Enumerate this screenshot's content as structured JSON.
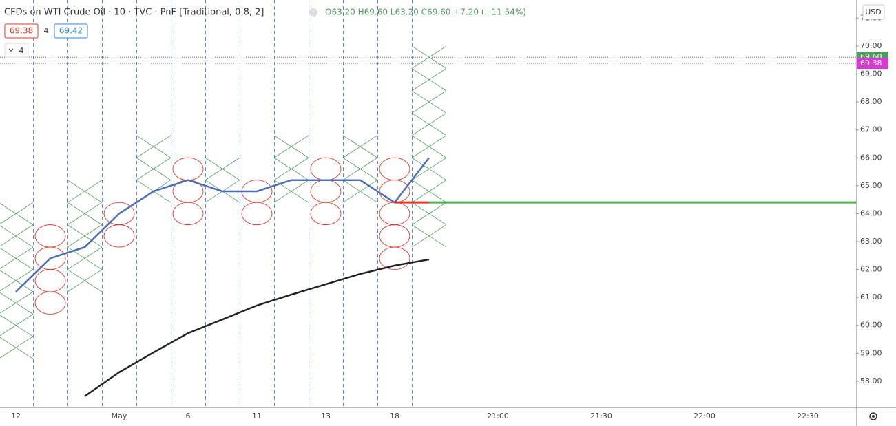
{
  "chart_data": {
    "type": "pnf",
    "title": "CFDs on WTI Crude Oil · 10 · TVC · PnF [Traditional, 0.8, 2]",
    "ohlc": "O63.20 H69.60 L63.20 C69.60 +7.20 (+11.54%)",
    "bid": "69.38",
    "spread": "4",
    "ask": "69.42",
    "indicators": "4",
    "currency": "USD",
    "box_size": 0.8,
    "x_color": "#4f9a5e",
    "o_color": "#e0392b",
    "columns": [
      {
        "kind": "X",
        "high": 64.4,
        "low": 58.8
      },
      {
        "kind": "O",
        "high": 63.6,
        "low": 60.4
      },
      {
        "kind": "X",
        "high": 65.2,
        "low": 61.2
      },
      {
        "kind": "O",
        "high": 64.4,
        "low": 62.8
      },
      {
        "kind": "X",
        "high": 66.8,
        "low": 64.4
      },
      {
        "kind": "O",
        "high": 66.0,
        "low": 63.6
      },
      {
        "kind": "X",
        "high": 66.0,
        "low": 64.4
      },
      {
        "kind": "O",
        "high": 65.2,
        "low": 63.6
      },
      {
        "kind": "X",
        "high": 66.8,
        "low": 64.4
      },
      {
        "kind": "O",
        "high": 66.0,
        "low": 63.6
      },
      {
        "kind": "X",
        "high": 66.8,
        "low": 64.4
      },
      {
        "kind": "O",
        "high": 66.0,
        "low": 62.0
      },
      {
        "kind": "X",
        "high": 70.0,
        "low": 62.8
      }
    ],
    "lines": [
      {
        "color": "#4a6fb5",
        "values": [
          61.2,
          62.4,
          62.8,
          64.0,
          64.8,
          65.2,
          64.8,
          64.8,
          65.2,
          65.2,
          65.2,
          64.4,
          66.0
        ]
      },
      {
        "color": "#222222",
        "values": [
          null,
          null,
          57.46,
          58.32,
          59.03,
          59.72,
          60.21,
          60.71,
          61.1,
          61.47,
          61.84,
          62.14,
          62.36
        ]
      }
    ],
    "levels": [
      {
        "value": 64.4,
        "color": "#e0392b",
        "from": 11,
        "to": 12
      },
      {
        "value": 64.4,
        "color": "#4caf50",
        "from": 12,
        "to": 25
      }
    ],
    "price_labels": [
      {
        "value": 69.6,
        "label": "69.60",
        "color": "#4f9a5e"
      },
      {
        "value": 69.38,
        "label": "69.38",
        "color": "#d63bd1"
      }
    ],
    "categories": [
      "12",
      null,
      null,
      "May",
      null,
      "6",
      null,
      "11",
      null,
      "13",
      null,
      "18",
      null,
      null,
      "21:00",
      null,
      null,
      "21:30",
      null,
      null,
      "22:00",
      null,
      null,
      "22:30"
    ],
    "ylim": [
      57.06,
      71.65
    ],
    "yticks": [
      {
        "value": 58,
        "label": "58.00"
      },
      {
        "value": 59,
        "label": "59.00"
      },
      {
        "value": 60,
        "label": "60.00"
      },
      {
        "value": 61,
        "label": "61.00"
      },
      {
        "value": 62,
        "label": "62.00"
      },
      {
        "value": 63,
        "label": "63.00"
      },
      {
        "value": 64,
        "label": "64.00"
      },
      {
        "value": 65,
        "label": "65.00"
      },
      {
        "value": 66,
        "label": "66.00"
      },
      {
        "value": 67,
        "label": "67.00"
      },
      {
        "value": 68,
        "label": "68.00"
      },
      {
        "value": 69,
        "label": "69.00"
      },
      {
        "value": 70,
        "label": "70.00"
      },
      {
        "value": 71,
        "label": "71.00"
      }
    ]
  }
}
